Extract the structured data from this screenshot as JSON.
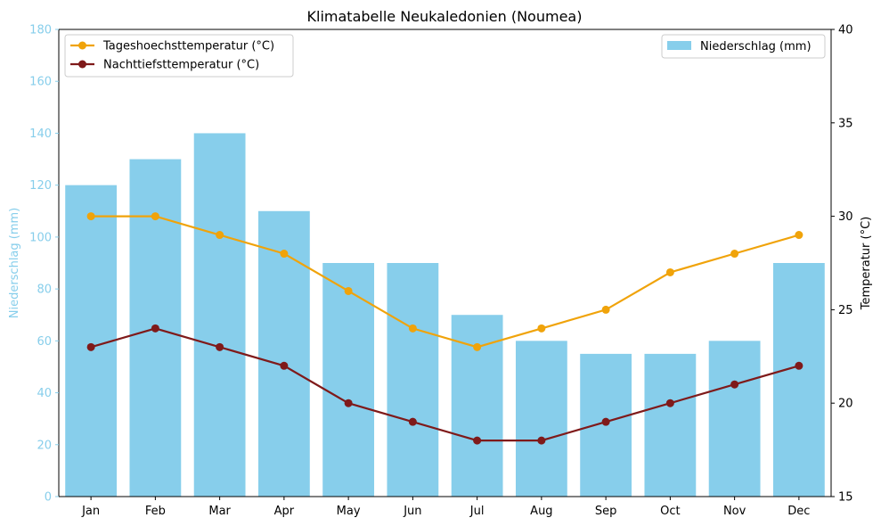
{
  "chart_data": {
    "type": "bar",
    "title": "Klimatabelle Neukaledonien (Noumea)",
    "categories": [
      "Jan",
      "Feb",
      "Mar",
      "Apr",
      "May",
      "Jun",
      "Jul",
      "Aug",
      "Sep",
      "Oct",
      "Nov",
      "Dec"
    ],
    "bar_series": {
      "name": "Niederschlag (mm)",
      "color": "#87ceeb",
      "values": [
        120,
        130,
        140,
        110,
        90,
        90,
        70,
        60,
        55,
        55,
        60,
        90
      ]
    },
    "line_series": [
      {
        "name": "Tageshoechsttemperatur (°C)",
        "color": "#f0a30a",
        "values": [
          30,
          30,
          29,
          28,
          26,
          24,
          23,
          24,
          25,
          27,
          28,
          29
        ]
      },
      {
        "name": "Nachttiefsttemperatur (°C)",
        "color": "#7f1a1a",
        "values": [
          23,
          24,
          23,
          22,
          20,
          19,
          18,
          18,
          19,
          20,
          21,
          22
        ]
      }
    ],
    "y_left": {
      "label": "Niederschlag (mm)",
      "color": "#87ceeb",
      "lim": [
        0,
        180
      ],
      "ticks": [
        0,
        20,
        40,
        60,
        80,
        100,
        120,
        140,
        160,
        180
      ]
    },
    "y_right": {
      "label": "Temperatur (°C)",
      "color": "#000000",
      "lim": [
        15,
        40
      ],
      "ticks": [
        15,
        20,
        25,
        30,
        35,
        40
      ]
    },
    "legend_lines_position": "top-left",
    "legend_bars_position": "top-right",
    "grid": false
  }
}
